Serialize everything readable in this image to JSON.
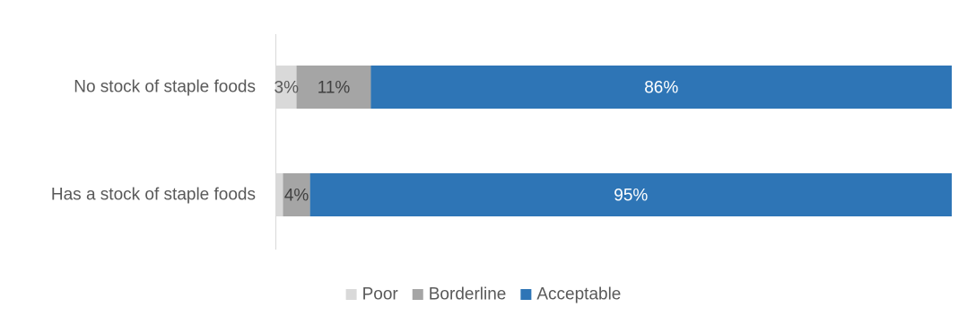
{
  "chart_data": {
    "type": "bar",
    "orientation": "horizontal",
    "stacked": true,
    "percent_stacked": true,
    "title": "",
    "xlabel": "",
    "ylabel": "",
    "xlim": [
      0,
      100
    ],
    "grid": false,
    "legend_position": "bottom",
    "categories": [
      "No stock of staple foods",
      "Has a stock of staple foods"
    ],
    "series": [
      {
        "name": "Poor",
        "color": "#d9d9d9",
        "label_color": "#595959",
        "values": [
          3,
          1
        ],
        "data_labels": [
          "3%",
          ""
        ]
      },
      {
        "name": "Borderline",
        "color": "#a5a5a5",
        "label_color": "#404040",
        "values": [
          11,
          4
        ],
        "data_labels": [
          "11%",
          "4%"
        ]
      },
      {
        "name": "Acceptable",
        "color": "#2e75b6",
        "label_color": "#ffffff",
        "values": [
          86,
          95
        ],
        "data_labels": [
          "86%",
          "95%"
        ]
      }
    ],
    "axis_color": "#d9d9d9"
  }
}
